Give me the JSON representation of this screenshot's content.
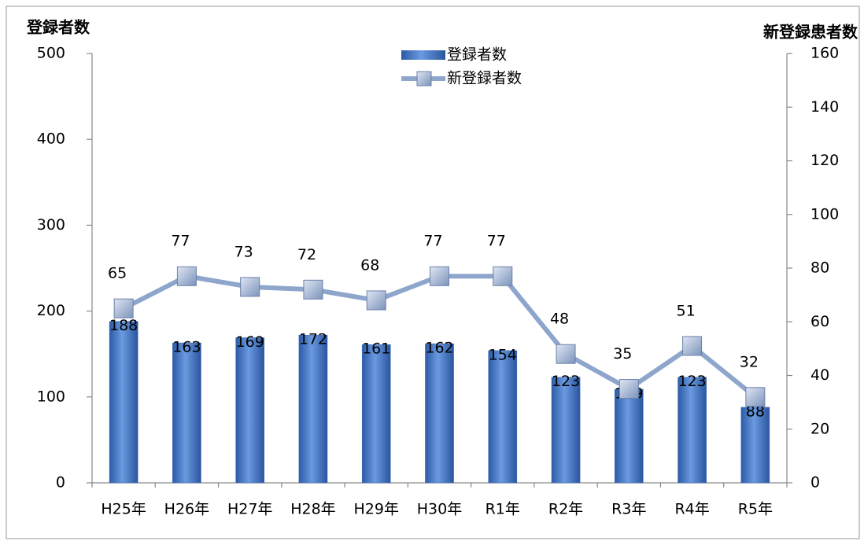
{
  "chart_data": {
    "type": "bar",
    "y_title": "登録者数",
    "y2_title": "新登録患者数",
    "categories": [
      "H25年",
      "H26年",
      "H27年",
      "H28年",
      "H29年",
      "H30年",
      "R1年",
      "R2年",
      "R3年",
      "R4年",
      "R5年"
    ],
    "series": [
      {
        "name": "登録者数",
        "type": "bar",
        "color": "#3f6fbf",
        "values": [
          188,
          163,
          169,
          172,
          161,
          162,
          154,
          123,
          109,
          123,
          88
        ]
      },
      {
        "name": "新登録者数",
        "type": "line",
        "axis": "y2",
        "color": "#8ea5cc",
        "values": [
          65,
          77,
          73,
          72,
          68,
          77,
          77,
          48,
          35,
          51,
          32
        ]
      }
    ],
    "ylim": [
      0,
      500
    ],
    "yticks": [
      0,
      100,
      200,
      300,
      400,
      500
    ],
    "y2lim": [
      0,
      160
    ],
    "y2ticks": [
      0,
      20,
      40,
      60,
      80,
      100,
      120,
      140,
      160
    ],
    "grid": false,
    "legend": "top"
  }
}
